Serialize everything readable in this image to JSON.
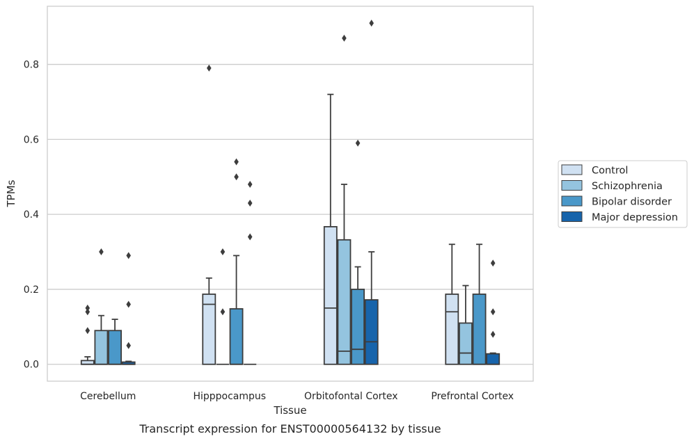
{
  "chart_data": {
    "type": "box",
    "xlabel": "Tissue",
    "ylabel": "TPMs",
    "caption": "Transcript expression for ENST00000564132 by tissue",
    "categories": [
      "Cerebellum",
      "Hipppocampus",
      "Orbitofontal Cortex",
      "Prefrontal Cortex"
    ],
    "ylim": [
      -0.045,
      0.955
    ],
    "yticks": [
      0.0,
      0.2,
      0.4,
      0.6,
      0.8
    ],
    "ytick_labels": [
      "0.0",
      "0.2",
      "0.4",
      "0.6",
      "0.8"
    ],
    "grid": "horizontal",
    "legend_position": "right",
    "series": [
      {
        "name": "Control",
        "color": "#d0e1f2",
        "boxes": [
          {
            "q1": 0.0,
            "median": 0.0,
            "q3": 0.01,
            "whisker_low": 0.0,
            "whisker_high": 0.02,
            "outliers": [
              0.09,
              0.14,
              0.15
            ]
          },
          {
            "q1": 0.0,
            "median": 0.16,
            "q3": 0.187,
            "whisker_low": 0.0,
            "whisker_high": 0.23,
            "outliers": [
              0.79
            ]
          },
          {
            "q1": 0.0,
            "median": 0.15,
            "q3": 0.367,
            "whisker_low": 0.0,
            "whisker_high": 0.72,
            "outliers": []
          },
          {
            "q1": 0.0,
            "median": 0.14,
            "q3": 0.187,
            "whisker_low": 0.0,
            "whisker_high": 0.32,
            "outliers": []
          }
        ]
      },
      {
        "name": "Schizophrenia",
        "color": "#94c4df",
        "boxes": [
          {
            "q1": 0.0,
            "median": 0.0,
            "q3": 0.09,
            "whisker_low": 0.0,
            "whisker_high": 0.13,
            "outliers": [
              0.3
            ]
          },
          {
            "q1": 0.0,
            "median": 0.0,
            "q3": 0.0,
            "whisker_low": 0.0,
            "whisker_high": 0.0,
            "outliers": [
              0.14,
              0.3
            ]
          },
          {
            "q1": 0.0,
            "median": 0.035,
            "q3": 0.332,
            "whisker_low": 0.0,
            "whisker_high": 0.48,
            "outliers": [
              0.87
            ]
          },
          {
            "q1": 0.0,
            "median": 0.03,
            "q3": 0.11,
            "whisker_low": 0.0,
            "whisker_high": 0.21,
            "outliers": []
          }
        ]
      },
      {
        "name": "Bipolar disorder",
        "color": "#4a98c9",
        "boxes": [
          {
            "q1": 0.0,
            "median": 0.0,
            "q3": 0.09,
            "whisker_low": 0.0,
            "whisker_high": 0.12,
            "outliers": []
          },
          {
            "q1": 0.0,
            "median": 0.0,
            "q3": 0.148,
            "whisker_low": 0.0,
            "whisker_high": 0.29,
            "outliers": [
              0.5,
              0.54
            ]
          },
          {
            "q1": 0.0,
            "median": 0.04,
            "q3": 0.2,
            "whisker_low": 0.0,
            "whisker_high": 0.26,
            "outliers": [
              0.59
            ]
          },
          {
            "q1": 0.0,
            "median": 0.0,
            "q3": 0.187,
            "whisker_low": 0.0,
            "whisker_high": 0.32,
            "outliers": []
          }
        ]
      },
      {
        "name": "Major depression",
        "color": "#1764ab",
        "boxes": [
          {
            "q1": 0.0,
            "median": 0.0,
            "q3": 0.006,
            "whisker_low": 0.0,
            "whisker_high": 0.008,
            "outliers": [
              0.05,
              0.16,
              0.29
            ]
          },
          {
            "q1": 0.0,
            "median": 0.0,
            "q3": 0.0,
            "whisker_low": 0.0,
            "whisker_high": 0.0,
            "outliers": [
              0.34,
              0.43,
              0.48
            ]
          },
          {
            "q1": 0.0,
            "median": 0.06,
            "q3": 0.172,
            "whisker_low": 0.0,
            "whisker_high": 0.3,
            "outliers": [
              0.91
            ]
          },
          {
            "q1": 0.0,
            "median": 0.0,
            "q3": 0.028,
            "whisker_low": 0.0,
            "whisker_high": 0.03,
            "outliers": [
              0.08,
              0.14,
              0.27
            ]
          }
        ]
      }
    ]
  }
}
